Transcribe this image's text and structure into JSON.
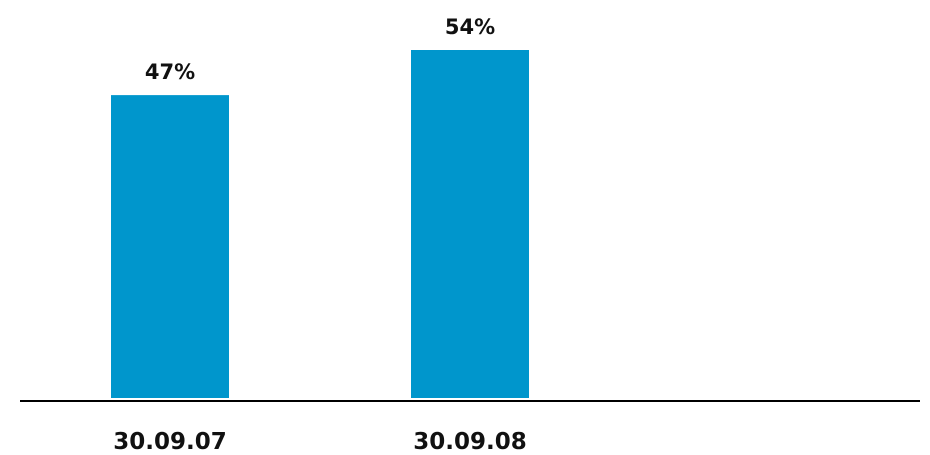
{
  "chart_data": {
    "type": "bar",
    "categories": [
      "30.09.07",
      "30.09.08"
    ],
    "values": [
      47,
      54
    ],
    "data_labels": [
      "47%",
      "54%"
    ],
    "ylim": [
      0,
      54
    ],
    "grid": false,
    "legend": "none",
    "colors": {
      "bar": "#0096CC",
      "axis": "#000000",
      "text": "#111111",
      "background": "#FFFFFF"
    }
  }
}
